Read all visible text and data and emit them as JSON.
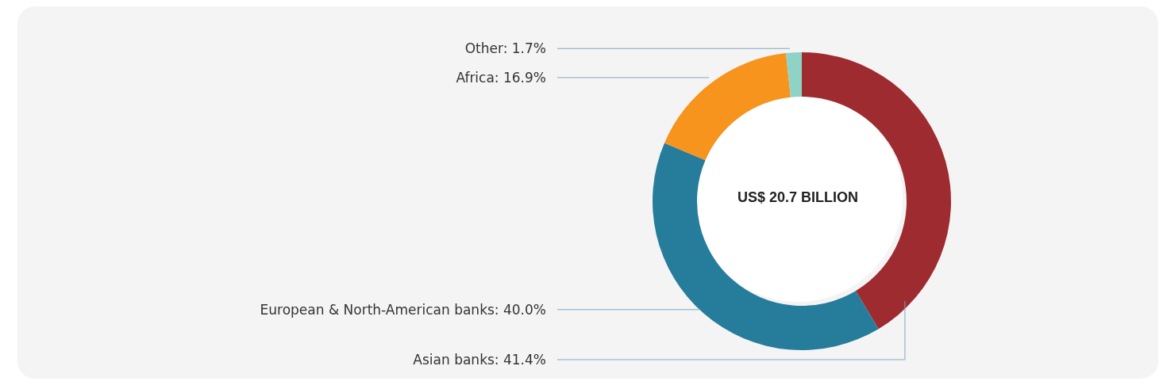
{
  "chart_data": {
    "type": "donut",
    "categories": [
      "Asian banks",
      "European & North-American banks",
      "Africa",
      "Other"
    ],
    "values": [
      41.4,
      40.0,
      16.9,
      1.7
    ],
    "colors": [
      "#9e2b2f",
      "#267d9b",
      "#f7941e",
      "#8fd3c7"
    ],
    "value_labels": [
      "41.4%",
      "40.0%",
      "16.9%",
      "1.7%"
    ],
    "annotations": [
      "US$ 20.7 BILLION"
    ],
    "legend": false
  }
}
